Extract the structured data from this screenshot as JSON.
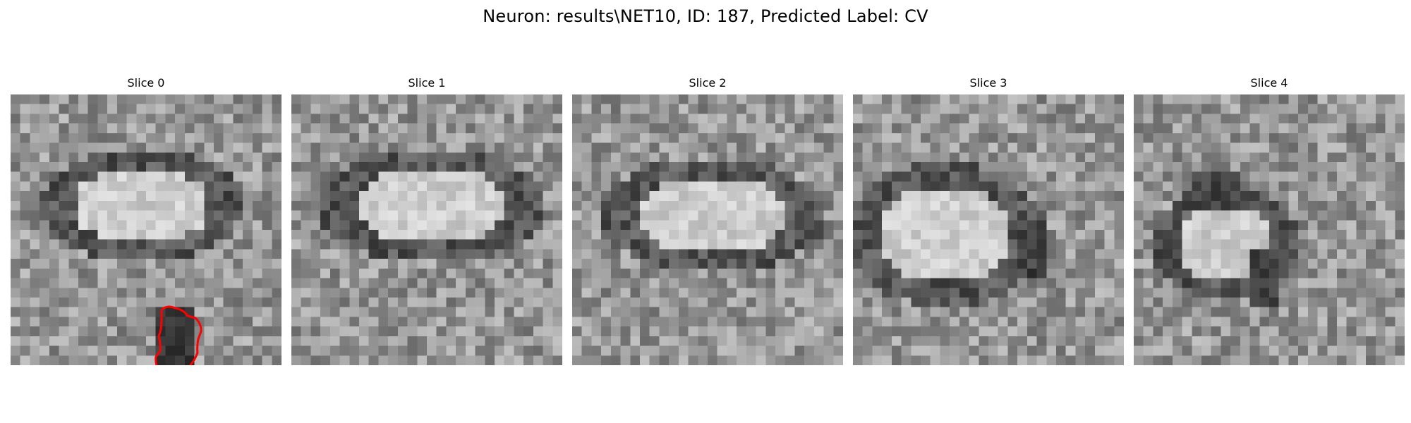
{
  "figure": {
    "title": "Neuron: results\\NET10, ID: 187, Predicted Label: CV"
  },
  "panels": [
    {
      "title": "Slice 0",
      "has_contour": true,
      "contour_color": "#ff0000",
      "seed": 11
    },
    {
      "title": "Slice 1",
      "has_contour": false,
      "seed": 23
    },
    {
      "title": "Slice 2",
      "has_contour": false,
      "seed": 37
    },
    {
      "title": "Slice 3",
      "has_contour": false,
      "seed": 41
    },
    {
      "title": "Slice 4",
      "has_contour": false,
      "seed": 59
    }
  ],
  "image": {
    "colormap": "gray",
    "grid": "28x28"
  }
}
